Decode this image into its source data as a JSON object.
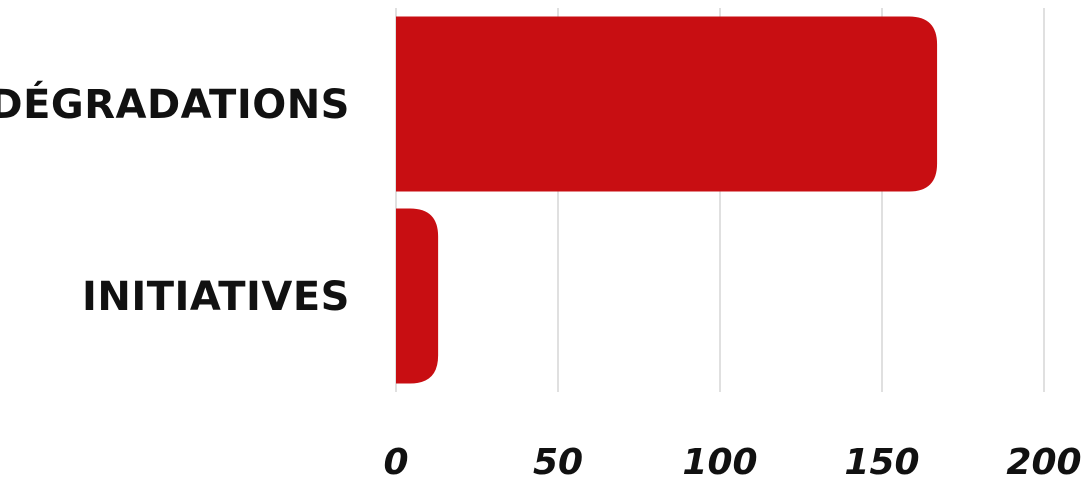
{
  "chart_data": {
    "type": "bar",
    "orientation": "horizontal",
    "categories": [
      "DÉGRADATIONS",
      "INITIATIVES"
    ],
    "values": [
      167,
      13
    ],
    "xlim": [
      0,
      200
    ],
    "xticks": [
      "0",
      "50",
      "100",
      "150",
      "200"
    ],
    "grid": true,
    "title": "",
    "xlabel": "",
    "ylabel": ""
  },
  "colors": {
    "bar": "#c80e12",
    "text": "#111111",
    "grid": "#cccccc"
  }
}
